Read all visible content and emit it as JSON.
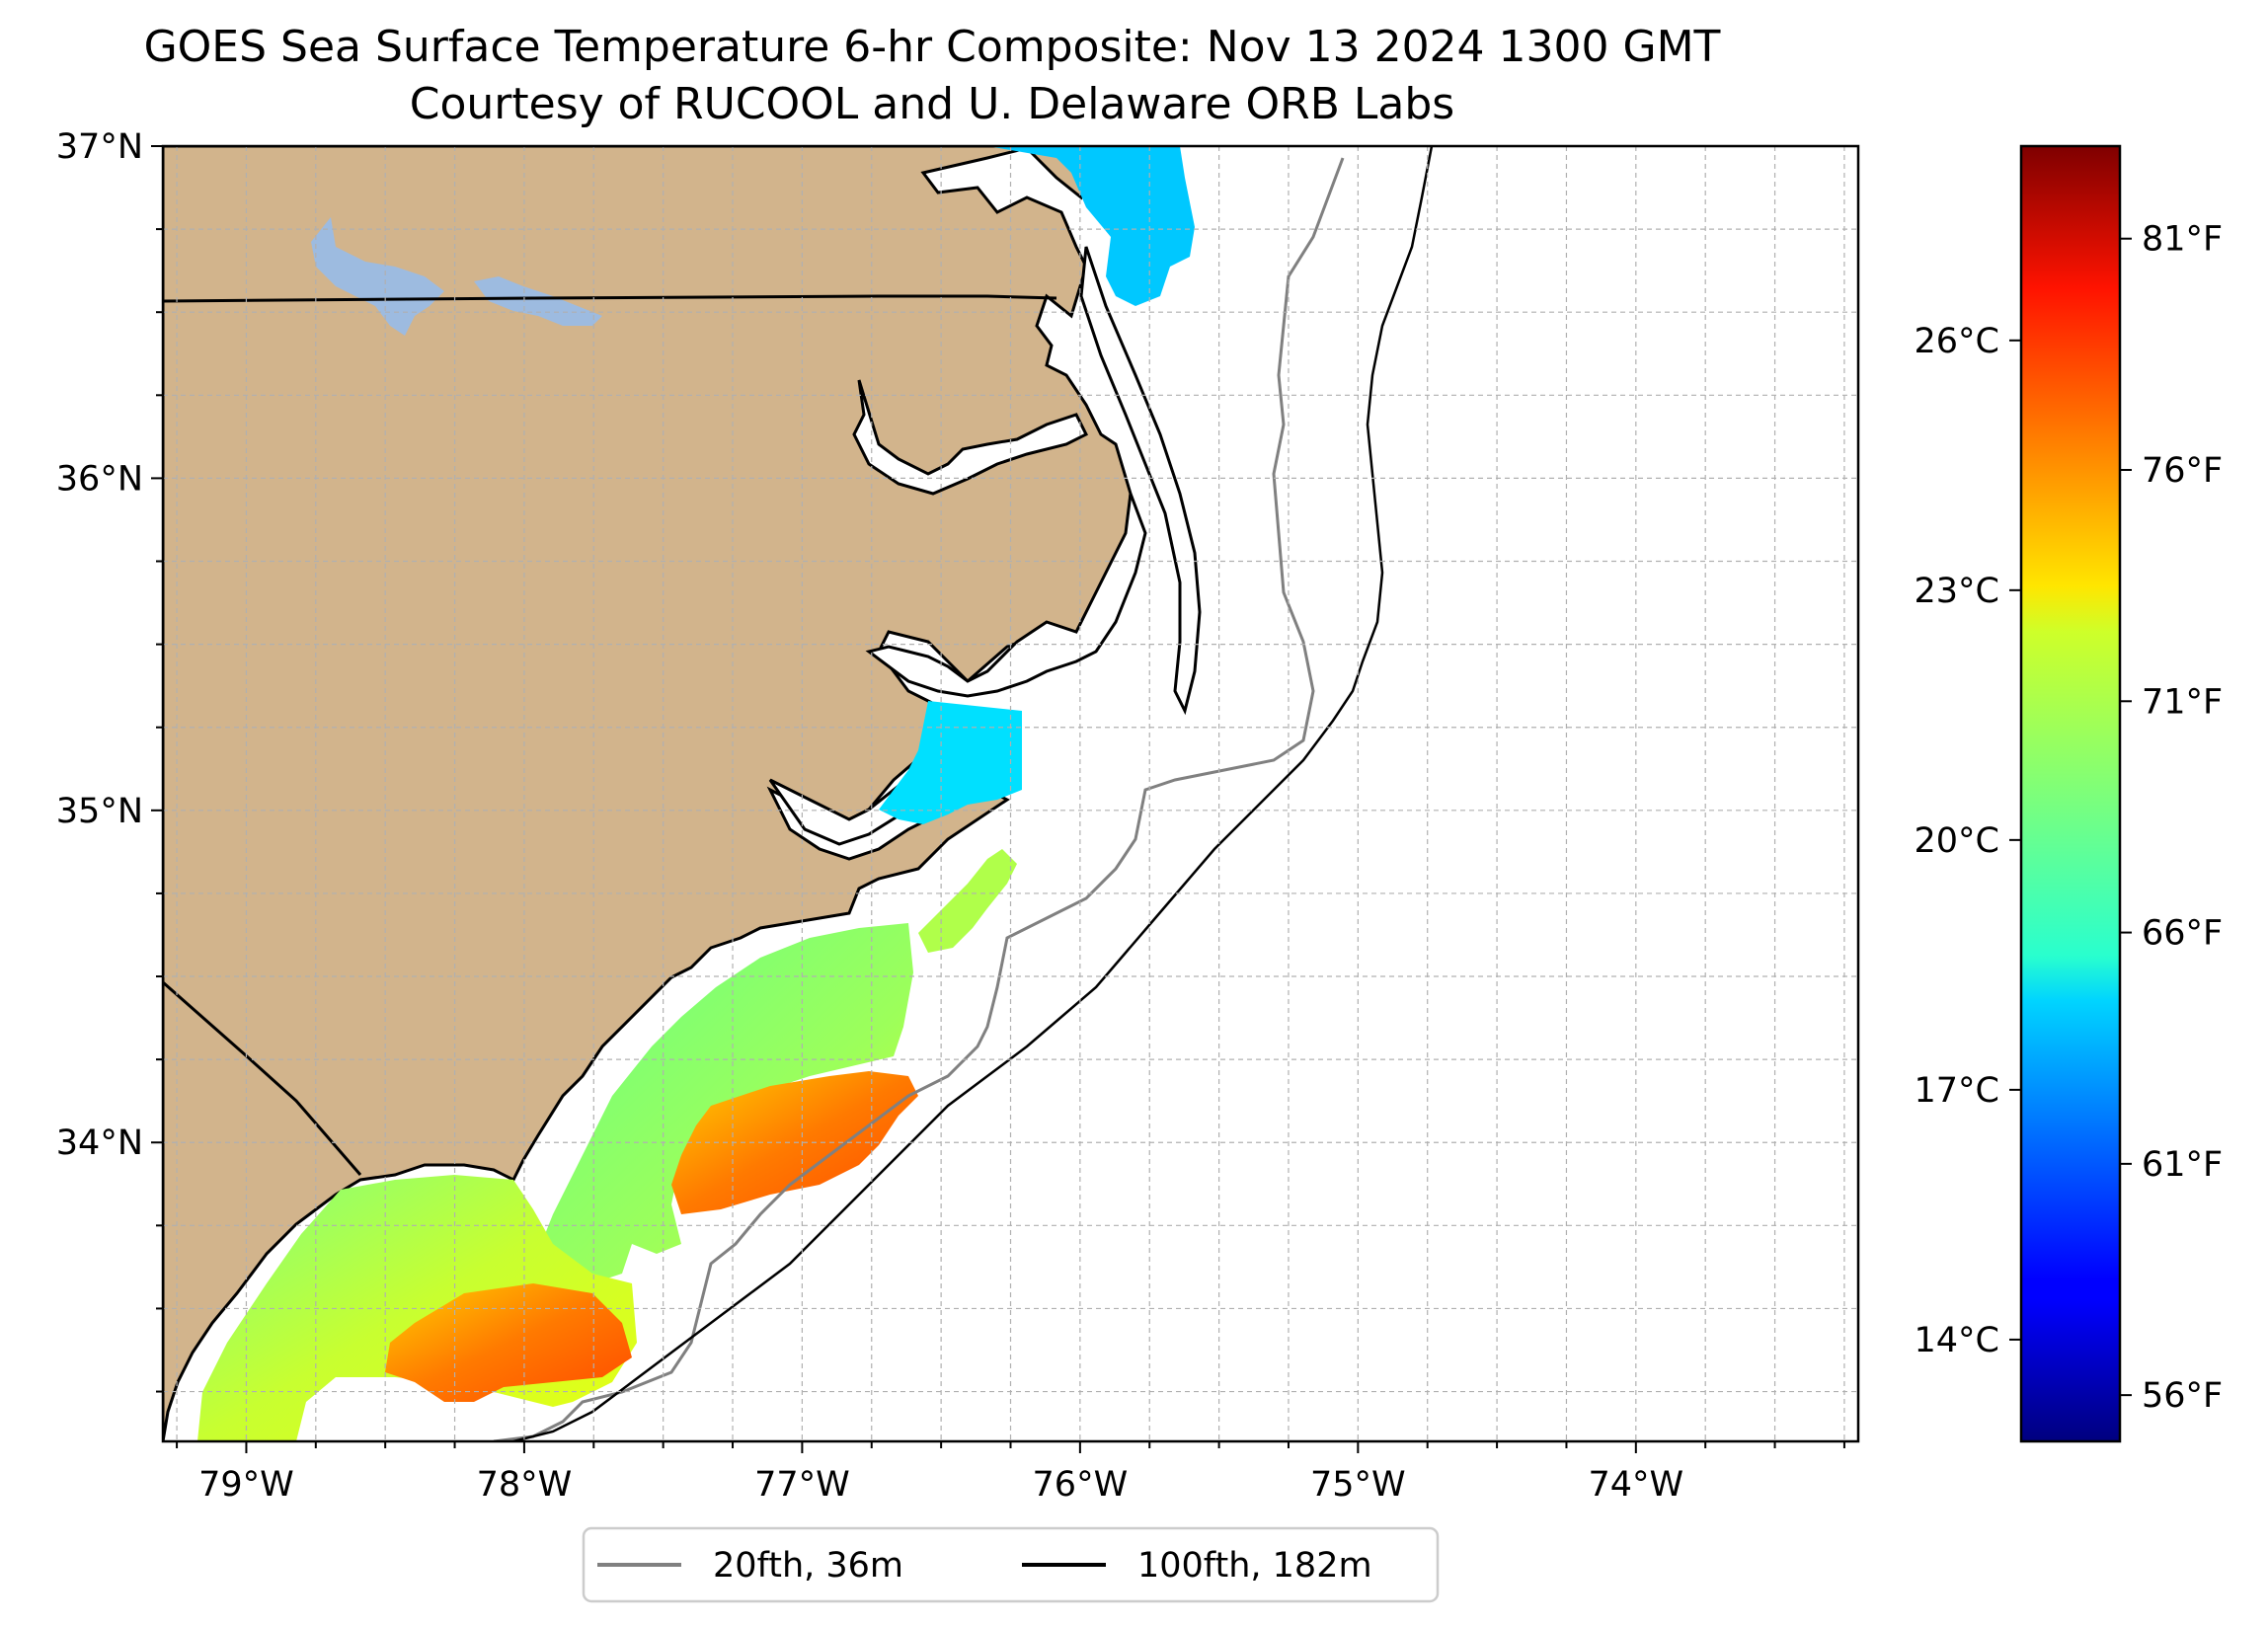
{
  "title": {
    "line1": "GOES Sea Surface Temperature 6-hr Composite: Nov 13 2024 1300 GMT",
    "line2": "Courtesy of RUCOOL and U. Delaware ORB Labs"
  },
  "map": {
    "lon_range": [
      -79.3,
      -73.2
    ],
    "lat_range": [
      33.1,
      37.0
    ],
    "x_ticks": [
      {
        "lon": -79,
        "label": "79°W"
      },
      {
        "lon": -78,
        "label": "78°W"
      },
      {
        "lon": -77,
        "label": "77°W"
      },
      {
        "lon": -76,
        "label": "76°W"
      },
      {
        "lon": -75,
        "label": "75°W"
      },
      {
        "lon": -74,
        "label": "74°W"
      }
    ],
    "y_ticks": [
      {
        "lat": 37,
        "label": "37°N"
      },
      {
        "lat": 36,
        "label": "36°N"
      },
      {
        "lat": 35,
        "label": "35°N"
      },
      {
        "lat": 34,
        "label": "34°N"
      }
    ],
    "gridlines": true,
    "grid_step_deg": 0.25,
    "colors": {
      "land": "#d2b48c",
      "lakes": "#9dbbe0",
      "coastline": "#000000",
      "isobath_20fth": "#808080",
      "isobath_100fth": "#000000",
      "grid": "#b0b0b0"
    }
  },
  "legend": {
    "placement": "bottom-center",
    "items": [
      {
        "label": "20fth, 36m",
        "color": "#808080"
      },
      {
        "label": "100fth, 182m",
        "color": "#000000"
      }
    ]
  },
  "colorbar": {
    "colormap": "jet",
    "range_f": [
      55,
      83
    ],
    "celsius_ticks": [
      {
        "value_f": 57.2,
        "label": "14°C"
      },
      {
        "value_f": 62.6,
        "label": "17°C"
      },
      {
        "value_f": 68.0,
        "label": "20°C"
      },
      {
        "value_f": 73.4,
        "label": "23°C"
      },
      {
        "value_f": 78.8,
        "label": "26°C"
      }
    ],
    "fahrenheit_ticks": [
      {
        "value_f": 56,
        "label": "56°F"
      },
      {
        "value_f": 61,
        "label": "61°F"
      },
      {
        "value_f": 66,
        "label": "66°F"
      },
      {
        "value_f": 71,
        "label": "71°F"
      },
      {
        "value_f": 76,
        "label": "76°F"
      },
      {
        "value_f": 81,
        "label": "81°F"
      }
    ]
  }
}
